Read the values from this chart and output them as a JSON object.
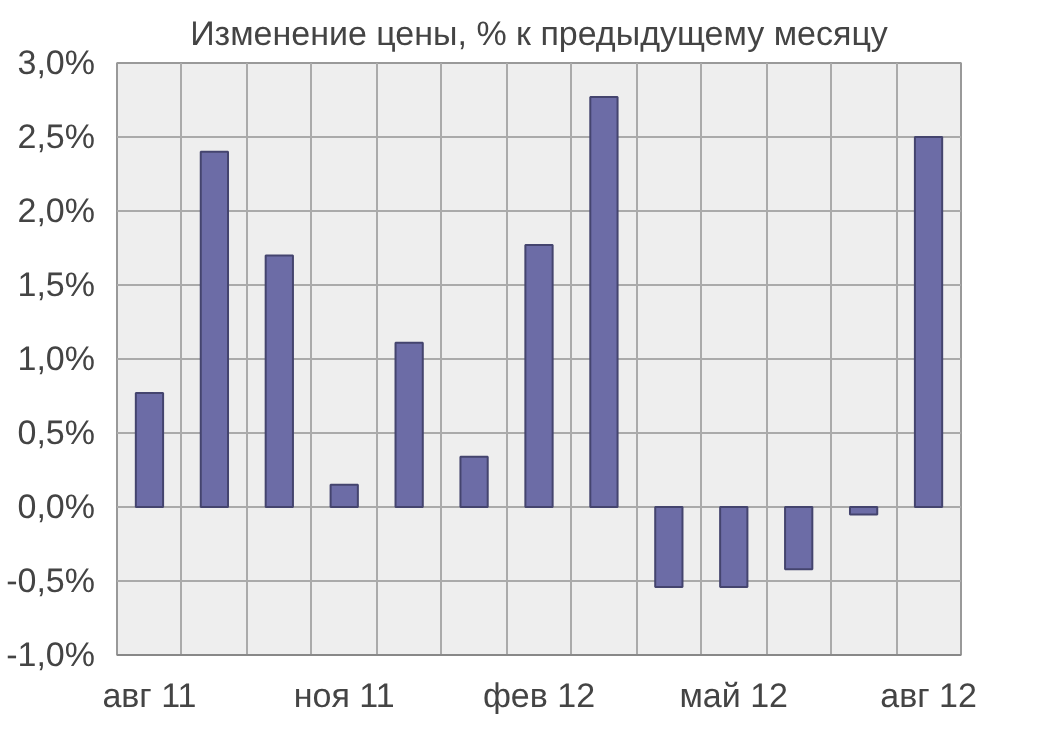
{
  "chart_data": {
    "type": "bar",
    "title": "Изменение цены, % к предыдущему месяцу",
    "categories": [
      "авг 11",
      null,
      null,
      "ноя 11",
      null,
      null,
      "фев 12",
      null,
      null,
      "май 12",
      null,
      null,
      "авг 12"
    ],
    "values": [
      0.77,
      2.4,
      1.7,
      0.15,
      1.11,
      0.34,
      1.77,
      2.77,
      -0.54,
      -0.54,
      -0.42,
      -0.05,
      2.5
    ],
    "color": "#6c6ca6",
    "ylim": [
      -1.0,
      3.0
    ],
    "yticks": [
      {
        "value": -1.0,
        "label": "-1,0%"
      },
      {
        "value": -0.5,
        "label": "-0,5%"
      },
      {
        "value": 0.0,
        "label": "0,0%"
      },
      {
        "value": 0.5,
        "label": "0,5%"
      },
      {
        "value": 1.0,
        "label": "1,0%"
      },
      {
        "value": 1.5,
        "label": "1,5%"
      },
      {
        "value": 2.0,
        "label": "2,0%"
      },
      {
        "value": 2.5,
        "label": "2,5%"
      },
      {
        "value": 3.0,
        "label": "3,0%"
      }
    ],
    "grid": true
  }
}
